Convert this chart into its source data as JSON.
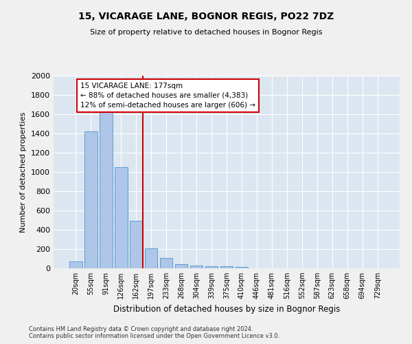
{
  "title1": "15, VICARAGE LANE, BOGNOR REGIS, PO22 7DZ",
  "title2": "Size of property relative to detached houses in Bognor Regis",
  "xlabel": "Distribution of detached houses by size in Bognor Regis",
  "ylabel": "Number of detached properties",
  "categories": [
    "20sqm",
    "55sqm",
    "91sqm",
    "126sqm",
    "162sqm",
    "197sqm",
    "233sqm",
    "268sqm",
    "304sqm",
    "339sqm",
    "375sqm",
    "410sqm",
    "446sqm",
    "481sqm",
    "516sqm",
    "552sqm",
    "587sqm",
    "623sqm",
    "658sqm",
    "694sqm",
    "729sqm"
  ],
  "values": [
    75,
    1420,
    1625,
    1050,
    490,
    205,
    105,
    40,
    30,
    20,
    20,
    15,
    0,
    0,
    0,
    0,
    0,
    0,
    0,
    0,
    0
  ],
  "bar_color": "#aec6e8",
  "bar_edge_color": "#5b9bd5",
  "marker_label": "15 VICARAGE LANE: 177sqm",
  "pct_smaller": "88% of detached houses are smaller (4,383)",
  "pct_larger": "12% of semi-detached houses are larger (606)",
  "annotation_box_color": "#ffffff",
  "annotation_box_edge": "#cc0000",
  "marker_line_color": "#cc0000",
  "background_color": "#dce6f0",
  "grid_color": "#ffffff",
  "footer1": "Contains HM Land Registry data © Crown copyright and database right 2024.",
  "footer2": "Contains public sector information licensed under the Open Government Licence v3.0.",
  "ylim": [
    0,
    2000
  ],
  "yticks": [
    0,
    200,
    400,
    600,
    800,
    1000,
    1200,
    1400,
    1600,
    1800,
    2000
  ],
  "fig_bg": "#f0f0f0"
}
